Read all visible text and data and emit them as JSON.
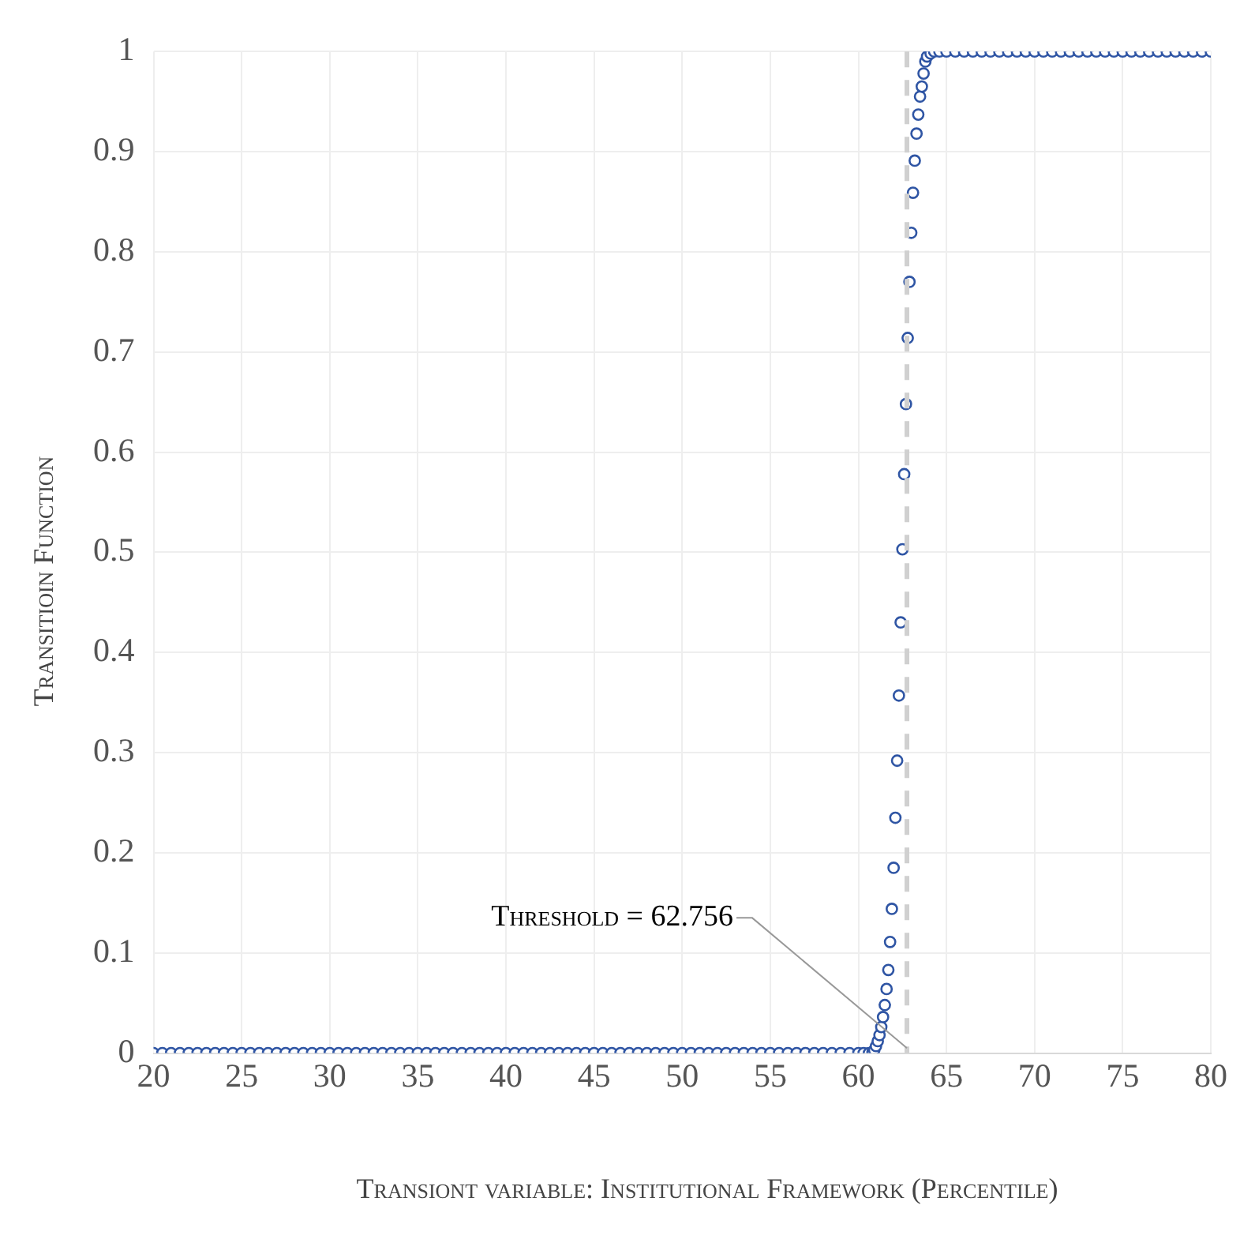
{
  "chart_data": {
    "type": "scatter",
    "xlabel": "Transiont variable: Institutional Framework (Percentile)",
    "ylabel": "Transitioin Function",
    "series": [
      {
        "color": "#2f55a4",
        "x": [
          20,
          20.5,
          21,
          21.5,
          22,
          22.5,
          23,
          23.5,
          24,
          24.5,
          25,
          25.5,
          26,
          26.5,
          27,
          27.5,
          28,
          28.5,
          29,
          29.5,
          30,
          30.5,
          31,
          31.5,
          32,
          32.5,
          33,
          33.5,
          34,
          34.5,
          35,
          35.5,
          36,
          36.5,
          37,
          37.5,
          38,
          38.5,
          39,
          39.5,
          40,
          40.5,
          41,
          41.5,
          42,
          42.5,
          43,
          43.5,
          44,
          44.5,
          45,
          45.5,
          46,
          46.5,
          47,
          47.5,
          48,
          48.5,
          49,
          49.5,
          50,
          50.5,
          51,
          51.5,
          52,
          52.5,
          53,
          53.5,
          54,
          54.5,
          55,
          55.5,
          56,
          56.5,
          57,
          57.5,
          58,
          58.5,
          59,
          59.5,
          60,
          60.3,
          60.6,
          60.8,
          60.9,
          61,
          61.1,
          61.2,
          61.3,
          61.4,
          61.5,
          61.6,
          61.7,
          61.8,
          61.9,
          62,
          62.1,
          62.2,
          62.3,
          62.4,
          62.5,
          62.6,
          62.7,
          62.8,
          62.9,
          63,
          63.1,
          63.2,
          63.3,
          63.4,
          63.5,
          63.6,
          63.7,
          63.8,
          63.9,
          64.1,
          64.3,
          64.6,
          65,
          65.5,
          66,
          66.5,
          67,
          67.5,
          68,
          68.5,
          69,
          69.5,
          70,
          70.5,
          71,
          71.5,
          72,
          72.5,
          73,
          73.5,
          74,
          74.5,
          75,
          75.5,
          76,
          76.5,
          77,
          77.5,
          78,
          78.5,
          79,
          79.5,
          80
        ],
        "values": [
          0,
          0,
          0,
          0,
          0,
          0,
          0,
          0,
          0,
          0,
          0,
          0,
          0,
          0,
          0,
          0,
          0,
          0,
          0,
          0,
          0,
          0,
          0,
          0,
          0,
          0,
          0,
          0,
          0,
          0,
          0,
          0,
          0,
          0,
          0,
          0,
          0,
          0,
          0,
          0,
          0,
          0,
          0,
          0,
          0,
          0,
          0,
          0,
          0,
          0,
          0,
          0,
          0,
          0,
          0,
          0,
          0,
          0,
          0,
          0,
          0,
          0,
          0,
          0,
          0,
          0,
          0,
          0,
          0,
          0,
          0,
          0,
          0,
          0,
          0,
          0,
          0,
          0,
          0,
          0,
          0,
          0,
          0,
          0.001,
          0.003,
          0.007,
          0.012,
          0.018,
          0.026,
          0.036,
          0.048,
          0.064,
          0.083,
          0.111,
          0.144,
          0.185,
          0.235,
          0.292,
          0.357,
          0.43,
          0.503,
          0.578,
          0.648,
          0.714,
          0.77,
          0.819,
          0.859,
          0.891,
          0.918,
          0.937,
          0.955,
          0.965,
          0.978,
          0.99,
          0.995,
          0.998,
          1,
          1,
          1,
          1,
          1,
          1,
          1,
          1,
          1,
          1,
          1,
          1,
          1,
          1,
          1,
          1,
          1,
          1,
          1,
          1,
          1,
          1,
          1,
          1,
          1,
          1,
          1,
          1,
          1,
          1,
          1,
          1,
          1
        ]
      }
    ],
    "xlim": [
      20,
      80
    ],
    "xticks": [
      20,
      25,
      30,
      35,
      40,
      45,
      50,
      55,
      60,
      65,
      70,
      75,
      80
    ],
    "ylim": [
      0,
      1
    ],
    "yticks": [
      0,
      0.1,
      0.2,
      0.3,
      0.4,
      0.5,
      0.6,
      0.7,
      0.8,
      0.9,
      1
    ],
    "grid": true,
    "legend": false,
    "marker": "circle",
    "ref_lines": [
      {
        "axis": "x",
        "value": 62.756,
        "label": "Threshold = 62.756",
        "color": "#d0d0d0",
        "line_style": "dashed"
      }
    ]
  }
}
